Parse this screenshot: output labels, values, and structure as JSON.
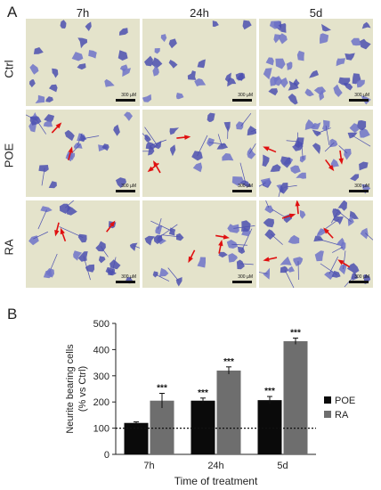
{
  "panel_a": {
    "letter": "A",
    "columns": [
      "7h",
      "24h",
      "5d"
    ],
    "rows": [
      "Ctrl",
      "POE",
      "RA"
    ],
    "scale_label": "300 µM",
    "arrow_counts": [
      [
        0,
        0,
        0
      ],
      [
        2,
        3,
        3
      ],
      [
        3,
        3,
        5
      ]
    ]
  },
  "panel_b": {
    "letter": "B",
    "chart_data": {
      "type": "bar",
      "categories": [
        "7h",
        "24h",
        "5d"
      ],
      "series": [
        {
          "name": "POE",
          "values": [
            120,
            205,
            207
          ],
          "errors": [
            4,
            10,
            14
          ],
          "color": "#0a0a0a",
          "sig": [
            "",
            "***",
            "***"
          ]
        },
        {
          "name": "RA",
          "values": [
            205,
            320,
            432
          ],
          "errors": [
            28,
            14,
            12
          ],
          "color": "#6e6e6e",
          "sig": [
            "***",
            "***",
            "***"
          ]
        }
      ],
      "title": "",
      "xlabel": "Time of treatment",
      "ylabel_line1": "Neurite bearing cells",
      "ylabel_line2": "(% vs Ctrl)",
      "ylim": [
        0,
        500
      ],
      "yticks": [
        0,
        100,
        200,
        300,
        400,
        500
      ],
      "reference_line": 100,
      "legend_position": "right"
    }
  },
  "colors": {
    "cell": "#6f73c9",
    "cell_dark": "#4c50b0",
    "background": "#e4e3cb",
    "arrow": "#e01010"
  }
}
